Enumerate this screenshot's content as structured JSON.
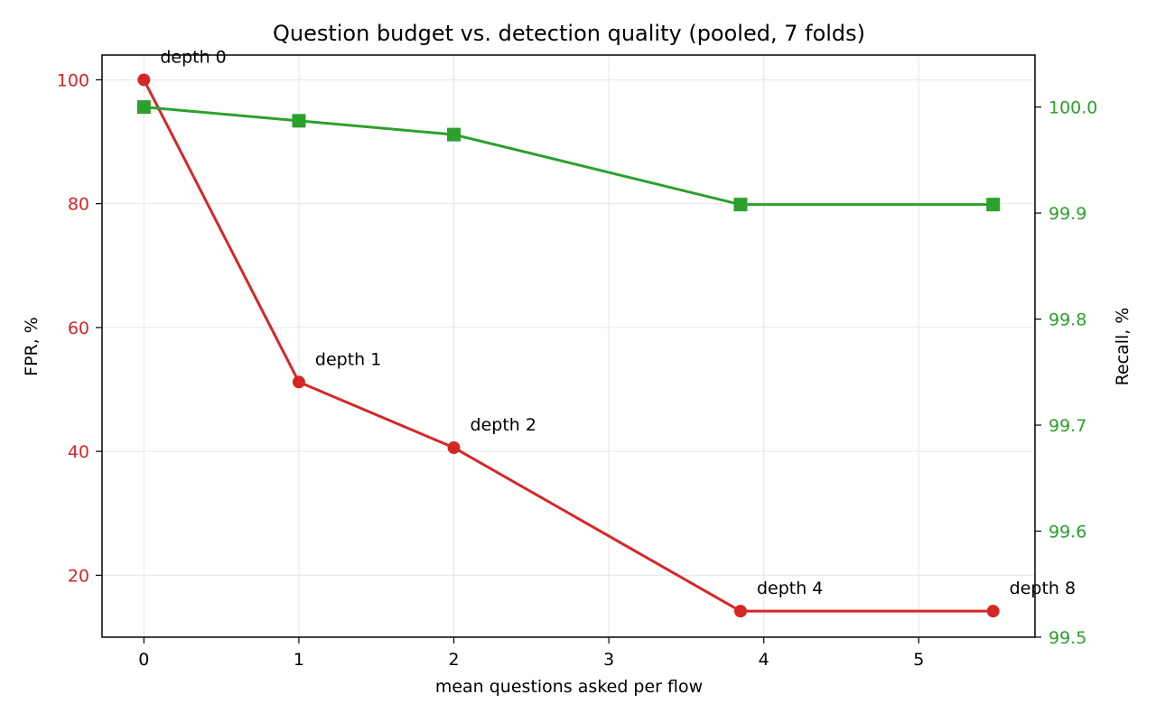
{
  "chart_data": {
    "type": "line",
    "title": "Question budget vs. detection quality (pooled, 7 folds)",
    "xlabel": "mean questions asked per flow",
    "ylabel_left": "FPR, %",
    "ylabel_right": "Recall, %",
    "xlim": [
      -0.27,
      5.75
    ],
    "ylim_left": [
      10,
      104
    ],
    "ylim_right": [
      99.5,
      100.049
    ],
    "x_ticks": [
      0,
      1,
      2,
      3,
      4,
      5
    ],
    "y_ticks_left": [
      20,
      40,
      60,
      80,
      100
    ],
    "y_ticks_right": [
      99.5,
      99.6,
      99.7,
      99.8,
      99.9,
      100.0
    ],
    "y_tick_labels_right": [
      "99.5",
      "99.6",
      "99.7",
      "99.8",
      "99.9",
      "100.0"
    ],
    "grid": true,
    "colors": {
      "fpr": "#d62728",
      "recall": "#2ca02c",
      "grid": "#e6e6e6",
      "axis": "#000000"
    },
    "series": [
      {
        "axis": "left",
        "color": "#d62728",
        "marker": "circle",
        "x": [
          0,
          1,
          2,
          3.85,
          5.48
        ],
        "y": [
          100,
          51.2,
          40.6,
          14.2,
          14.2
        ]
      },
      {
        "axis": "right",
        "color": "#2ca02c",
        "marker": "square",
        "x": [
          0,
          1,
          2,
          3.85,
          5.48
        ],
        "y": [
          100.0,
          99.987,
          99.974,
          99.908,
          99.908
        ]
      }
    ],
    "annotations": [
      {
        "text": "depth 0",
        "x": 0,
        "y": 100
      },
      {
        "text": "depth 1",
        "x": 1,
        "y": 51.2
      },
      {
        "text": "depth 2",
        "x": 2,
        "y": 40.6
      },
      {
        "text": "depth 4",
        "x": 3.85,
        "y": 14.2
      },
      {
        "text": "depth 8",
        "x": 5.48,
        "y": 14.2
      }
    ]
  }
}
